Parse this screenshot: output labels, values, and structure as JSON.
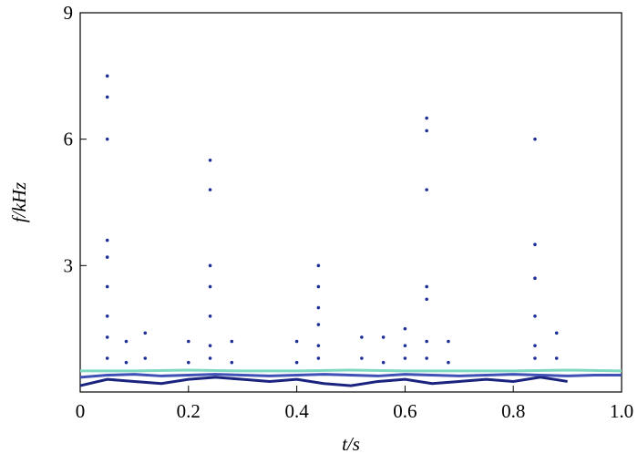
{
  "chart_data": {
    "type": "scatter",
    "xlabel": "t/s",
    "ylabel": "f/kHz",
    "xlim": [
      0,
      1
    ],
    "ylim": [
      0,
      9
    ],
    "xticks": [
      0,
      0.2,
      0.4,
      0.6,
      0.8,
      {
        "value": 1,
        "label": "1.0"
      }
    ],
    "yticks": [
      3,
      6,
      9
    ],
    "grid": false,
    "series": [
      {
        "style": "line",
        "color": "#1a237e",
        "x": [
          0,
          0.05,
          0.1,
          0.15,
          0.2,
          0.25,
          0.3,
          0.35,
          0.4,
          0.45,
          0.5,
          0.55,
          0.6,
          0.65,
          0.7,
          0.75,
          0.8,
          0.85,
          0.9
        ],
        "values": [
          0.15,
          0.3,
          0.25,
          0.2,
          0.3,
          0.35,
          0.3,
          0.25,
          0.3,
          0.2,
          0.15,
          0.25,
          0.3,
          0.2,
          0.25,
          0.3,
          0.25,
          0.35,
          0.25
        ]
      },
      {
        "style": "line",
        "color": "#3f51b5",
        "x": [
          0,
          0.05,
          0.1,
          0.15,
          0.2,
          0.25,
          0.3,
          0.35,
          0.4,
          0.45,
          0.5,
          0.55,
          0.6,
          0.65,
          0.7,
          0.75,
          0.8,
          0.85,
          0.9,
          0.95,
          1
        ],
        "values": [
          0.35,
          0.4,
          0.42,
          0.38,
          0.4,
          0.42,
          0.4,
          0.38,
          0.4,
          0.42,
          0.4,
          0.38,
          0.42,
          0.4,
          0.38,
          0.4,
          0.42,
          0.4,
          0.38,
          0.4,
          0.4
        ]
      },
      {
        "style": "line",
        "color": "#7fd9c0",
        "x": [
          0,
          0.1,
          0.2,
          0.3,
          0.4,
          0.5,
          0.6,
          0.7,
          0.8,
          0.9,
          1
        ],
        "values": [
          0.5,
          0.5,
          0.52,
          0.5,
          0.5,
          0.52,
          0.5,
          0.5,
          0.5,
          0.52,
          0.5
        ]
      },
      {
        "style": "points",
        "color": "#1e2f9a",
        "x": [
          0.05,
          0.05,
          0.085,
          0.085,
          0.12,
          0.12,
          0.2,
          0.2,
          0.24,
          0.24,
          0.28,
          0.28,
          0.4,
          0.4,
          0.44,
          0.44,
          0.52,
          0.52,
          0.56,
          0.56,
          0.6,
          0.6,
          0.64,
          0.64,
          0.68,
          0.68,
          0.84,
          0.84,
          0.88,
          0.88
        ],
        "values": [
          0.8,
          1.3,
          0.7,
          1.2,
          0.8,
          1.4,
          0.7,
          1.2,
          0.8,
          1.1,
          0.7,
          1.2,
          0.7,
          1.2,
          0.8,
          1.1,
          0.8,
          1.3,
          0.7,
          1.3,
          0.8,
          1.1,
          0.8,
          1.2,
          0.7,
          1.2,
          0.8,
          1.1,
          0.8,
          1.4
        ]
      },
      {
        "style": "points",
        "color": "#1e2f9a",
        "x": [
          0.05,
          0.05,
          0.05,
          0.05,
          0.05,
          0.05,
          0.05,
          0.24,
          0.24,
          0.24,
          0.24,
          0.24,
          0.44,
          0.44,
          0.44,
          0.44,
          0.6,
          0.64,
          0.64,
          0.64,
          0.64,
          0.64,
          0.84,
          0.84,
          0.84,
          0.84
        ],
        "values": [
          7.5,
          7.0,
          6.0,
          3.6,
          3.2,
          2.5,
          1.8,
          5.5,
          4.8,
          3.0,
          2.5,
          1.8,
          3.0,
          2.5,
          2.0,
          1.6,
          1.5,
          6.5,
          6.2,
          4.8,
          2.5,
          2.2,
          6.0,
          3.5,
          2.7,
          1.8
        ]
      }
    ]
  }
}
